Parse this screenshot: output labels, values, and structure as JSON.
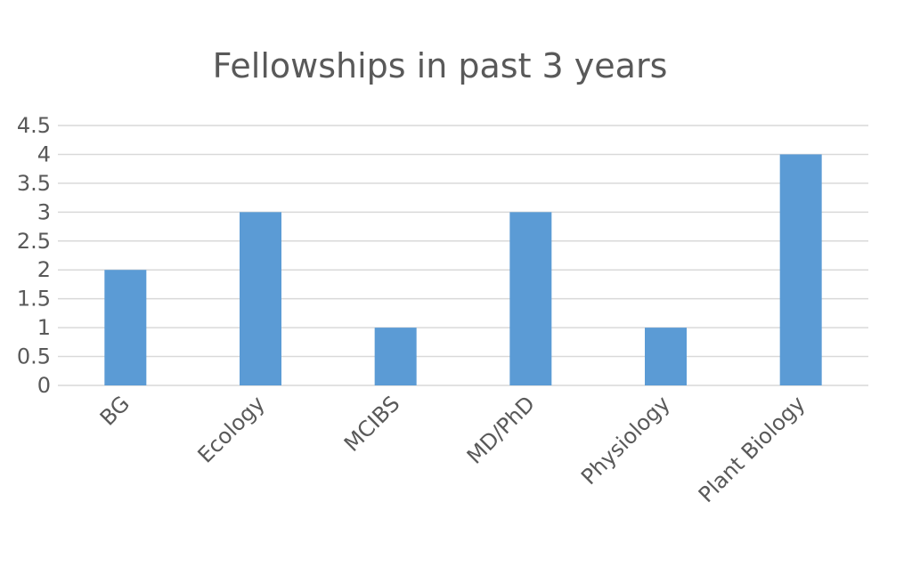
{
  "chart_data": {
    "type": "bar",
    "title": "Fellowships in past 3 years",
    "categories": [
      "BG",
      "Ecology",
      "MCIBS",
      "MD/PhD",
      "Physiology",
      "Plant Biology"
    ],
    "values": [
      2,
      3,
      1,
      3,
      1,
      4
    ],
    "ylim": [
      0,
      4.5
    ],
    "yticks": [
      "0",
      "0.5",
      "1",
      "1.5",
      "2",
      "2.5",
      "3",
      "3.5",
      "4",
      "4.5"
    ],
    "xlabel": "",
    "ylabel": "",
    "grid": true,
    "bar_color": "#5b9bd5",
    "grid_color": "#d9d9d9",
    "text_color": "#595959"
  }
}
